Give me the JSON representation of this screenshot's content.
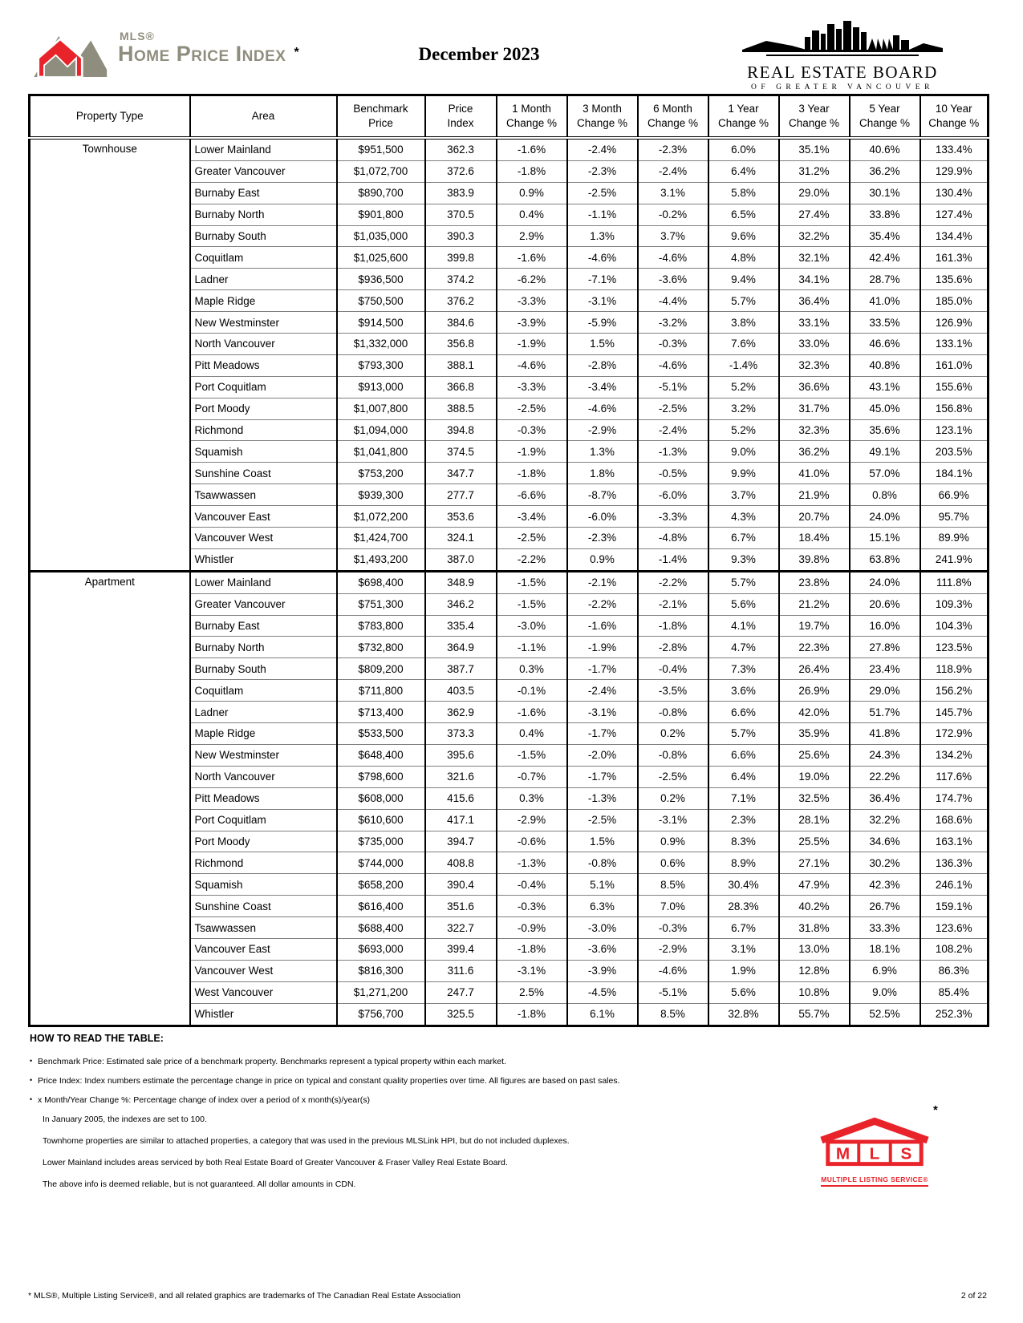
{
  "header": {
    "logo": {
      "mls_small": "MLS®",
      "title": "Home Price Index",
      "asterisk": "*"
    },
    "date_title": "December 2023",
    "board_logo": {
      "line1": "REAL ESTATE BOARD",
      "line2": "OF GREATER VANCOUVER"
    }
  },
  "table": {
    "columns": [
      "Property Type",
      "Area",
      "Benchmark\nPrice",
      "Price\nIndex",
      "1 Month\nChange %",
      "3 Month\nChange %",
      "6 Month\nChange %",
      "1 Year\nChange %",
      "3 Year\nChange %",
      "5 Year\nChange %",
      "10 Year\nChange %"
    ],
    "sections": [
      {
        "property_type": "Townhouse",
        "rows": [
          [
            "Lower Mainland",
            "$951,500",
            "362.3",
            "-1.6%",
            "-2.4%",
            "-2.3%",
            "6.0%",
            "35.1%",
            "40.6%",
            "133.4%"
          ],
          [
            "Greater Vancouver",
            "$1,072,700",
            "372.6",
            "-1.8%",
            "-2.3%",
            "-2.4%",
            "6.4%",
            "31.2%",
            "36.2%",
            "129.9%"
          ],
          [
            "Burnaby East",
            "$890,700",
            "383.9",
            "0.9%",
            "-2.5%",
            "3.1%",
            "5.8%",
            "29.0%",
            "30.1%",
            "130.4%"
          ],
          [
            "Burnaby North",
            "$901,800",
            "370.5",
            "0.4%",
            "-1.1%",
            "-0.2%",
            "6.5%",
            "27.4%",
            "33.8%",
            "127.4%"
          ],
          [
            "Burnaby South",
            "$1,035,000",
            "390.3",
            "2.9%",
            "1.3%",
            "3.7%",
            "9.6%",
            "32.2%",
            "35.4%",
            "134.4%"
          ],
          [
            "Coquitlam",
            "$1,025,600",
            "399.8",
            "-1.6%",
            "-4.6%",
            "-4.6%",
            "4.8%",
            "32.1%",
            "42.4%",
            "161.3%"
          ],
          [
            "Ladner",
            "$936,500",
            "374.2",
            "-6.2%",
            "-7.1%",
            "-3.6%",
            "9.4%",
            "34.1%",
            "28.7%",
            "135.6%"
          ],
          [
            "Maple Ridge",
            "$750,500",
            "376.2",
            "-3.3%",
            "-3.1%",
            "-4.4%",
            "5.7%",
            "36.4%",
            "41.0%",
            "185.0%"
          ],
          [
            "New Westminster",
            "$914,500",
            "384.6",
            "-3.9%",
            "-5.9%",
            "-3.2%",
            "3.8%",
            "33.1%",
            "33.5%",
            "126.9%"
          ],
          [
            "North Vancouver",
            "$1,332,000",
            "356.8",
            "-1.9%",
            "1.5%",
            "-0.3%",
            "7.6%",
            "33.0%",
            "46.6%",
            "133.1%"
          ],
          [
            "Pitt Meadows",
            "$793,300",
            "388.1",
            "-4.6%",
            "-2.8%",
            "-4.6%",
            "-1.4%",
            "32.3%",
            "40.8%",
            "161.0%"
          ],
          [
            "Port Coquitlam",
            "$913,000",
            "366.8",
            "-3.3%",
            "-3.4%",
            "-5.1%",
            "5.2%",
            "36.6%",
            "43.1%",
            "155.6%"
          ],
          [
            "Port Moody",
            "$1,007,800",
            "388.5",
            "-2.5%",
            "-4.6%",
            "-2.5%",
            "3.2%",
            "31.7%",
            "45.0%",
            "156.8%"
          ],
          [
            "Richmond",
            "$1,094,000",
            "394.8",
            "-0.3%",
            "-2.9%",
            "-2.4%",
            "5.2%",
            "32.3%",
            "35.6%",
            "123.1%"
          ],
          [
            "Squamish",
            "$1,041,800",
            "374.5",
            "-1.9%",
            "1.3%",
            "-1.3%",
            "9.0%",
            "36.2%",
            "49.1%",
            "203.5%"
          ],
          [
            "Sunshine Coast",
            "$753,200",
            "347.7",
            "-1.8%",
            "1.8%",
            "-0.5%",
            "9.9%",
            "41.0%",
            "57.0%",
            "184.1%"
          ],
          [
            "Tsawwassen",
            "$939,300",
            "277.7",
            "-6.6%",
            "-8.7%",
            "-6.0%",
            "3.7%",
            "21.9%",
            "0.8%",
            "66.9%"
          ],
          [
            "Vancouver East",
            "$1,072,200",
            "353.6",
            "-3.4%",
            "-6.0%",
            "-3.3%",
            "4.3%",
            "20.7%",
            "24.0%",
            "95.7%"
          ],
          [
            "Vancouver West",
            "$1,424,700",
            "324.1",
            "-2.5%",
            "-2.3%",
            "-4.8%",
            "6.7%",
            "18.4%",
            "15.1%",
            "89.9%"
          ],
          [
            "Whistler",
            "$1,493,200",
            "387.0",
            "-2.2%",
            "0.9%",
            "-1.4%",
            "9.3%",
            "39.8%",
            "63.8%",
            "241.9%"
          ]
        ]
      },
      {
        "property_type": "Apartment",
        "rows": [
          [
            "Lower Mainland",
            "$698,400",
            "348.9",
            "-1.5%",
            "-2.1%",
            "-2.2%",
            "5.7%",
            "23.8%",
            "24.0%",
            "111.8%"
          ],
          [
            "Greater Vancouver",
            "$751,300",
            "346.2",
            "-1.5%",
            "-2.2%",
            "-2.1%",
            "5.6%",
            "21.2%",
            "20.6%",
            "109.3%"
          ],
          [
            "Burnaby East",
            "$783,800",
            "335.4",
            "-3.0%",
            "-1.6%",
            "-1.8%",
            "4.1%",
            "19.7%",
            "16.0%",
            "104.3%"
          ],
          [
            "Burnaby North",
            "$732,800",
            "364.9",
            "-1.1%",
            "-1.9%",
            "-2.8%",
            "4.7%",
            "22.3%",
            "27.8%",
            "123.5%"
          ],
          [
            "Burnaby South",
            "$809,200",
            "387.7",
            "0.3%",
            "-1.7%",
            "-0.4%",
            "7.3%",
            "26.4%",
            "23.4%",
            "118.9%"
          ],
          [
            "Coquitlam",
            "$711,800",
            "403.5",
            "-0.1%",
            "-2.4%",
            "-3.5%",
            "3.6%",
            "26.9%",
            "29.0%",
            "156.2%"
          ],
          [
            "Ladner",
            "$713,400",
            "362.9",
            "-1.6%",
            "-3.1%",
            "-0.8%",
            "6.6%",
            "42.0%",
            "51.7%",
            "145.7%"
          ],
          [
            "Maple Ridge",
            "$533,500",
            "373.3",
            "0.4%",
            "-1.7%",
            "0.2%",
            "5.7%",
            "35.9%",
            "41.8%",
            "172.9%"
          ],
          [
            "New Westminster",
            "$648,400",
            "395.6",
            "-1.5%",
            "-2.0%",
            "-0.8%",
            "6.6%",
            "25.6%",
            "24.3%",
            "134.2%"
          ],
          [
            "North Vancouver",
            "$798,600",
            "321.6",
            "-0.7%",
            "-1.7%",
            "-2.5%",
            "6.4%",
            "19.0%",
            "22.2%",
            "117.6%"
          ],
          [
            "Pitt Meadows",
            "$608,000",
            "415.6",
            "0.3%",
            "-1.3%",
            "0.2%",
            "7.1%",
            "32.5%",
            "36.4%",
            "174.7%"
          ],
          [
            "Port Coquitlam",
            "$610,600",
            "417.1",
            "-2.9%",
            "-2.5%",
            "-3.1%",
            "2.3%",
            "28.1%",
            "32.2%",
            "168.6%"
          ],
          [
            "Port Moody",
            "$735,000",
            "394.7",
            "-0.6%",
            "1.5%",
            "0.9%",
            "8.3%",
            "25.5%",
            "34.6%",
            "163.1%"
          ],
          [
            "Richmond",
            "$744,000",
            "408.8",
            "-1.3%",
            "-0.8%",
            "0.6%",
            "8.9%",
            "27.1%",
            "30.2%",
            "136.3%"
          ],
          [
            "Squamish",
            "$658,200",
            "390.4",
            "-0.4%",
            "5.1%",
            "8.5%",
            "30.4%",
            "47.9%",
            "42.3%",
            "246.1%"
          ],
          [
            "Sunshine Coast",
            "$616,400",
            "351.6",
            "-0.3%",
            "6.3%",
            "7.0%",
            "28.3%",
            "40.2%",
            "26.7%",
            "159.1%"
          ],
          [
            "Tsawwassen",
            "$688,400",
            "322.7",
            "-0.9%",
            "-3.0%",
            "-0.3%",
            "6.7%",
            "31.8%",
            "33.3%",
            "123.6%"
          ],
          [
            "Vancouver East",
            "$693,000",
            "399.4",
            "-1.8%",
            "-3.6%",
            "-2.9%",
            "3.1%",
            "13.0%",
            "18.1%",
            "108.2%"
          ],
          [
            "Vancouver West",
            "$816,300",
            "311.6",
            "-3.1%",
            "-3.9%",
            "-4.6%",
            "1.9%",
            "12.8%",
            "6.9%",
            "86.3%"
          ],
          [
            "West Vancouver",
            "$1,271,200",
            "247.7",
            "2.5%",
            "-4.5%",
            "-5.1%",
            "5.6%",
            "10.8%",
            "9.0%",
            "85.4%"
          ],
          [
            "Whistler",
            "$756,700",
            "325.5",
            "-1.8%",
            "6.1%",
            "8.5%",
            "32.8%",
            "55.7%",
            "52.5%",
            "252.3%"
          ]
        ]
      }
    ]
  },
  "notes": {
    "heading": "HOW TO READ THE TABLE:",
    "bullets": [
      "Benchmark Price:  Estimated sale price of a benchmark property. Benchmarks represent a typical property within each market.",
      "Price Index:  Index numbers estimate the percentage change in price on typical and constant quality properties over time. All figures are based on past sales.",
      "x Month/Year Change %:  Percentage change of index over a period of x month(s)/year(s)"
    ],
    "indented": [
      "In January 2005, the indexes are set to 100.",
      "Townhome properties are similar to attached properties, a category that was used in the previous MLSLink HPI, but do not included duplexes.",
      "Lower Mainland includes areas serviced by both Real Estate Board of Greater Vancouver & Fraser Valley Real Estate Board.",
      "The above info is deemed reliable, but is not guaranteed. All dollar amounts in CDN."
    ]
  },
  "mls_logo": {
    "letters": [
      "M",
      "L",
      "S"
    ],
    "caption": "MULTIPLE LISTING SERVICE®",
    "asterisk": "*"
  },
  "footer": {
    "left": "* MLS®, Multiple Listing Service®, and all related graphics are trademarks of The Canadian Real Estate Association",
    "right": "2 of 22"
  },
  "colors": {
    "brand_red": "#e8232a",
    "brand_gray": "#8f8e7e"
  }
}
